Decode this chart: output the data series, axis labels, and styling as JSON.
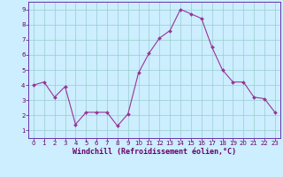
{
  "x": [
    0,
    1,
    2,
    3,
    4,
    5,
    6,
    7,
    8,
    9,
    10,
    11,
    12,
    13,
    14,
    15,
    16,
    17,
    18,
    19,
    20,
    21,
    22,
    23
  ],
  "y": [
    4.0,
    4.2,
    3.2,
    3.9,
    1.4,
    2.2,
    2.2,
    2.2,
    1.3,
    2.1,
    4.8,
    6.1,
    7.1,
    7.6,
    9.0,
    8.7,
    8.4,
    6.5,
    5.0,
    4.2,
    4.2,
    3.2,
    3.1,
    2.2
  ],
  "line_color": "#993399",
  "marker_color": "#993399",
  "bg_color": "#cceeff",
  "grid_color": "#99cccc",
  "xlabel": "Windchill (Refroidissement éolien,°C)",
  "xlim": [
    -0.5,
    23.5
  ],
  "ylim": [
    0.5,
    9.5
  ],
  "xticks": [
    0,
    1,
    2,
    3,
    4,
    5,
    6,
    7,
    8,
    9,
    10,
    11,
    12,
    13,
    14,
    15,
    16,
    17,
    18,
    19,
    20,
    21,
    22,
    23
  ],
  "yticks": [
    1,
    2,
    3,
    4,
    5,
    6,
    7,
    8,
    9
  ],
  "tick_fontsize": 5.0,
  "xlabel_fontsize": 6.0,
  "axis_label_color": "#660066",
  "tick_color": "#660066",
  "border_color": "#6633aa"
}
